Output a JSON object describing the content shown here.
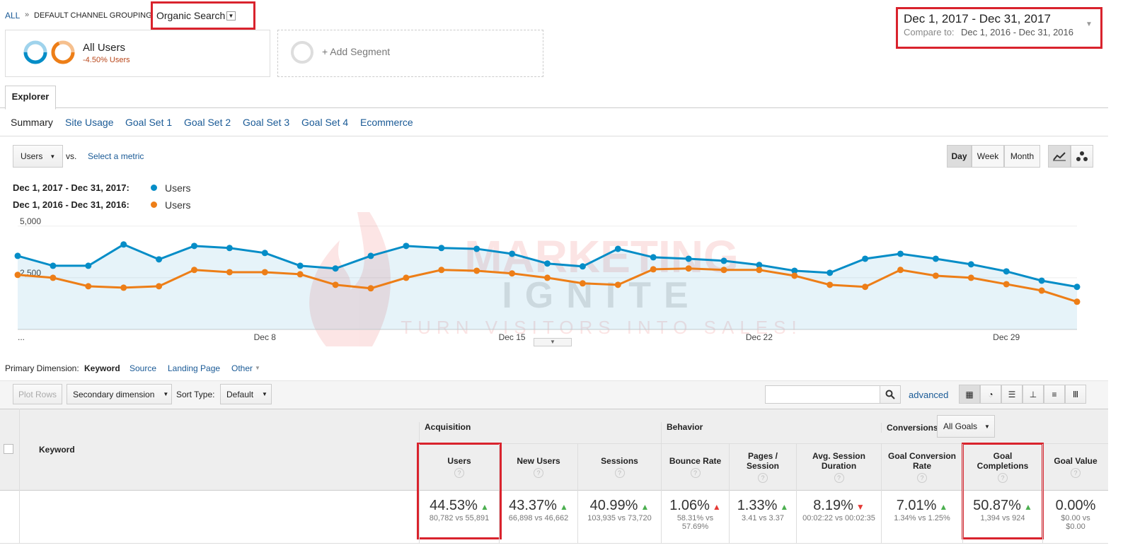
{
  "breadcrumb": {
    "all": "ALL",
    "sep": "»",
    "grouping": "DEFAULT CHANNEL GROUPING",
    "value": "Organic Search"
  },
  "segments": {
    "name": "All Users",
    "change": "-4.50% Users",
    "add": "+ Add Segment"
  },
  "date_range": {
    "current": "Dec 1, 2017 - Dec 31, 2017",
    "compare_label": "Compare to:",
    "compare": "Dec 1, 2016 - Dec 31, 2016"
  },
  "tab": "Explorer",
  "subtabs": [
    "Summary",
    "Site Usage",
    "Goal Set 1",
    "Goal Set 2",
    "Goal Set 3",
    "Goal Set 4",
    "Ecommerce"
  ],
  "metric_select": "Users",
  "vs": "vs.",
  "select_metric": "Select a metric",
  "granularity": [
    "Day",
    "Week",
    "Month"
  ],
  "chart_data": {
    "type": "line",
    "categories": [
      "...",
      null,
      null,
      null,
      null,
      null,
      null,
      "Dec 8",
      null,
      null,
      null,
      null,
      null,
      null,
      "Dec 15",
      null,
      null,
      null,
      null,
      null,
      null,
      "Dec 22",
      null,
      null,
      null,
      null,
      null,
      null,
      "Dec 29",
      null,
      null
    ],
    "series": [
      {
        "name": "Users",
        "period": "Dec 1, 2017 - Dec 31, 2017:",
        "color": "#058dc7",
        "area": true,
        "values": [
          3560,
          3080,
          3080,
          4110,
          3390,
          4040,
          3940,
          3700,
          3080,
          2950,
          3560,
          4040,
          3940,
          3900,
          3660,
          3190,
          3050,
          3900,
          3490,
          3420,
          3320,
          3120,
          2840,
          2740,
          3420,
          3660,
          3420,
          3150,
          2810,
          2360,
          2060
        ]
      },
      {
        "name": "Users",
        "period": "Dec 1, 2016 - Dec 31, 2016:",
        "color": "#ed7e17",
        "area": false,
        "values": [
          2640,
          2500,
          2090,
          2020,
          2090,
          2880,
          2770,
          2770,
          2670,
          2160,
          1990,
          2500,
          2880,
          2840,
          2710,
          2500,
          2230,
          2160,
          2910,
          2950,
          2880,
          2880,
          2600,
          2160,
          2060,
          2880,
          2600,
          2500,
          2190,
          1880,
          1340
        ]
      }
    ],
    "ylim": [
      0,
      5300
    ],
    "yticks": [
      {
        "value": 2500,
        "label": "2,500"
      },
      {
        "value": 5000,
        "label": "5,000"
      }
    ],
    "grid": true
  },
  "watermark": {
    "line1": "MARKETING",
    "line2": "IGNITE",
    "tagline": "TURN VISITORS INTO SALES!"
  },
  "dimension": {
    "label": "Primary Dimension:",
    "options": [
      "Keyword",
      "Source",
      "Landing Page",
      "Other"
    ]
  },
  "toolbar": {
    "plot_rows": "Plot Rows",
    "secondary": "Secondary dimension",
    "sort_label": "Sort Type:",
    "sort": "Default",
    "advanced": "advanced"
  },
  "table": {
    "dimension_header": "Keyword",
    "groups": [
      "Acquisition",
      "Behavior",
      "Conversions"
    ],
    "goals_select": "All Goals",
    "columns": [
      {
        "name": "Users",
        "value": "44.53%",
        "detail": "80,782 vs 55,891",
        "trend": "up",
        "trend_color": "#4caf50"
      },
      {
        "name": "New Users",
        "value": "43.37%",
        "detail": "66,898 vs 46,662",
        "trend": "up",
        "trend_color": "#4caf50"
      },
      {
        "name": "Sessions",
        "value": "40.99%",
        "detail": "103,935 vs 73,720",
        "trend": "up",
        "trend_color": "#4caf50"
      },
      {
        "name": "Bounce Rate",
        "value": "1.06%",
        "detail": "58.31% vs 57.69%",
        "trend": "up",
        "trend_color": "#e53935"
      },
      {
        "name": "Pages / Session",
        "value": "1.33%",
        "detail": "3.41 vs 3.37",
        "trend": "up",
        "trend_color": "#4caf50"
      },
      {
        "name": "Avg. Session Duration",
        "value": "8.19%",
        "detail": "00:02:22 vs 00:02:35",
        "trend": "down",
        "trend_color": "#e53935"
      },
      {
        "name": "Goal Conversion Rate",
        "value": "7.01%",
        "detail": "1.34% vs 1.25%",
        "trend": "up",
        "trend_color": "#4caf50"
      },
      {
        "name": "Goal Completions",
        "value": "50.87%",
        "detail": "1,394 vs 924",
        "trend": "up",
        "trend_color": "#4caf50"
      },
      {
        "name": "Goal Value",
        "value": "0.00%",
        "detail": "$0.00 vs $0.00",
        "trend": "none",
        "trend_color": "#999999"
      }
    ]
  }
}
